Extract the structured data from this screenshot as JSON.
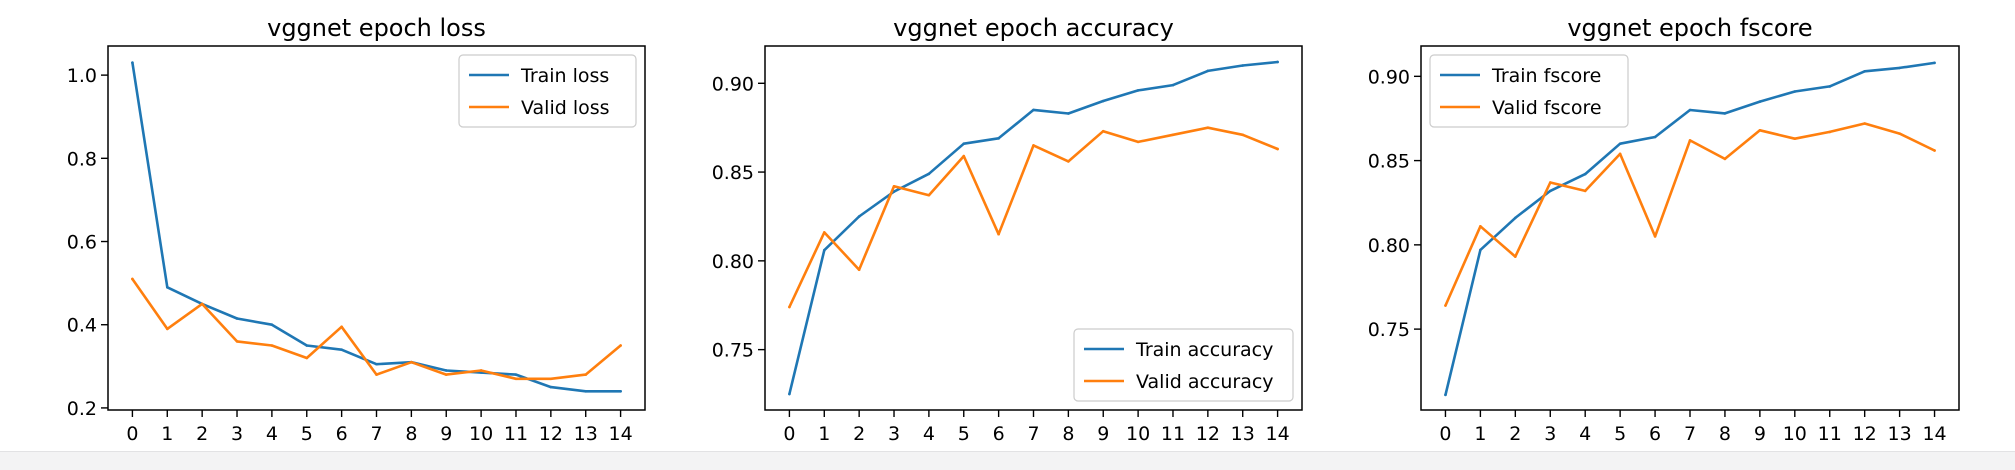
{
  "colors": {
    "train": "#1f77b4",
    "valid": "#ff7f0e",
    "axes": "#000000",
    "background": "#ffffff",
    "bottom_bar": "#f3f3f4"
  },
  "chart_data": [
    {
      "type": "line",
      "title": "vggnet epoch loss",
      "xlabel": "",
      "ylabel": "",
      "x": [
        0,
        1,
        2,
        3,
        4,
        5,
        6,
        7,
        8,
        9,
        10,
        11,
        12,
        13,
        14
      ],
      "xlim": [
        -0.7,
        14.7
      ],
      "ylim": [
        0.195,
        1.07
      ],
      "yticks": [
        0.2,
        0.4,
        0.6,
        0.8,
        1.0
      ],
      "ytick_labels": [
        "0.2",
        "0.4",
        "0.6",
        "0.8",
        "1.0"
      ],
      "legend_loc": "upper right",
      "series": [
        {
          "name": "Train loss",
          "color": "#1f77b4",
          "values": [
            1.03,
            0.49,
            0.45,
            0.415,
            0.4,
            0.35,
            0.34,
            0.305,
            0.31,
            0.29,
            0.285,
            0.28,
            0.25,
            0.24,
            0.24
          ]
        },
        {
          "name": "Valid loss",
          "color": "#ff7f0e",
          "values": [
            0.51,
            0.39,
            0.45,
            0.36,
            0.35,
            0.32,
            0.395,
            0.28,
            0.31,
            0.28,
            0.29,
            0.27,
            0.27,
            0.28,
            0.35
          ]
        }
      ]
    },
    {
      "type": "line",
      "title": "vggnet epoch accuracy",
      "xlabel": "",
      "ylabel": "",
      "x": [
        0,
        1,
        2,
        3,
        4,
        5,
        6,
        7,
        8,
        9,
        10,
        11,
        12,
        13,
        14
      ],
      "xlim": [
        -0.7,
        14.7
      ],
      "ylim": [
        0.716,
        0.921
      ],
      "yticks": [
        0.75,
        0.8,
        0.85,
        0.9
      ],
      "ytick_labels": [
        "0.75",
        "0.80",
        "0.85",
        "0.90"
      ],
      "legend_loc": "lower right",
      "series": [
        {
          "name": "Train accuracy",
          "color": "#1f77b4",
          "values": [
            0.725,
            0.806,
            0.825,
            0.839,
            0.849,
            0.866,
            0.869,
            0.885,
            0.883,
            0.89,
            0.896,
            0.899,
            0.907,
            0.91,
            0.912
          ]
        },
        {
          "name": "Valid accuracy",
          "color": "#ff7f0e",
          "values": [
            0.774,
            0.816,
            0.795,
            0.842,
            0.837,
            0.859,
            0.815,
            0.865,
            0.856,
            0.873,
            0.867,
            0.871,
            0.875,
            0.871,
            0.863
          ]
        }
      ]
    },
    {
      "type": "line",
      "title": "vggnet epoch fscore",
      "xlabel": "",
      "ylabel": "",
      "x": [
        0,
        1,
        2,
        3,
        4,
        5,
        6,
        7,
        8,
        9,
        10,
        11,
        12,
        13,
        14
      ],
      "xlim": [
        -0.7,
        14.7
      ],
      "ylim": [
        0.702,
        0.918
      ],
      "yticks": [
        0.75,
        0.8,
        0.85,
        0.9
      ],
      "ytick_labels": [
        "0.75",
        "0.80",
        "0.85",
        "0.90"
      ],
      "legend_loc": "upper left",
      "series": [
        {
          "name": "Train fscore",
          "color": "#1f77b4",
          "values": [
            0.711,
            0.797,
            0.816,
            0.832,
            0.842,
            0.86,
            0.864,
            0.88,
            0.878,
            0.885,
            0.891,
            0.894,
            0.903,
            0.905,
            0.908
          ]
        },
        {
          "name": "Valid fscore",
          "color": "#ff7f0e",
          "values": [
            0.764,
            0.811,
            0.793,
            0.837,
            0.832,
            0.854,
            0.805,
            0.862,
            0.851,
            0.868,
            0.863,
            0.867,
            0.872,
            0.866,
            0.856
          ]
        }
      ]
    }
  ]
}
